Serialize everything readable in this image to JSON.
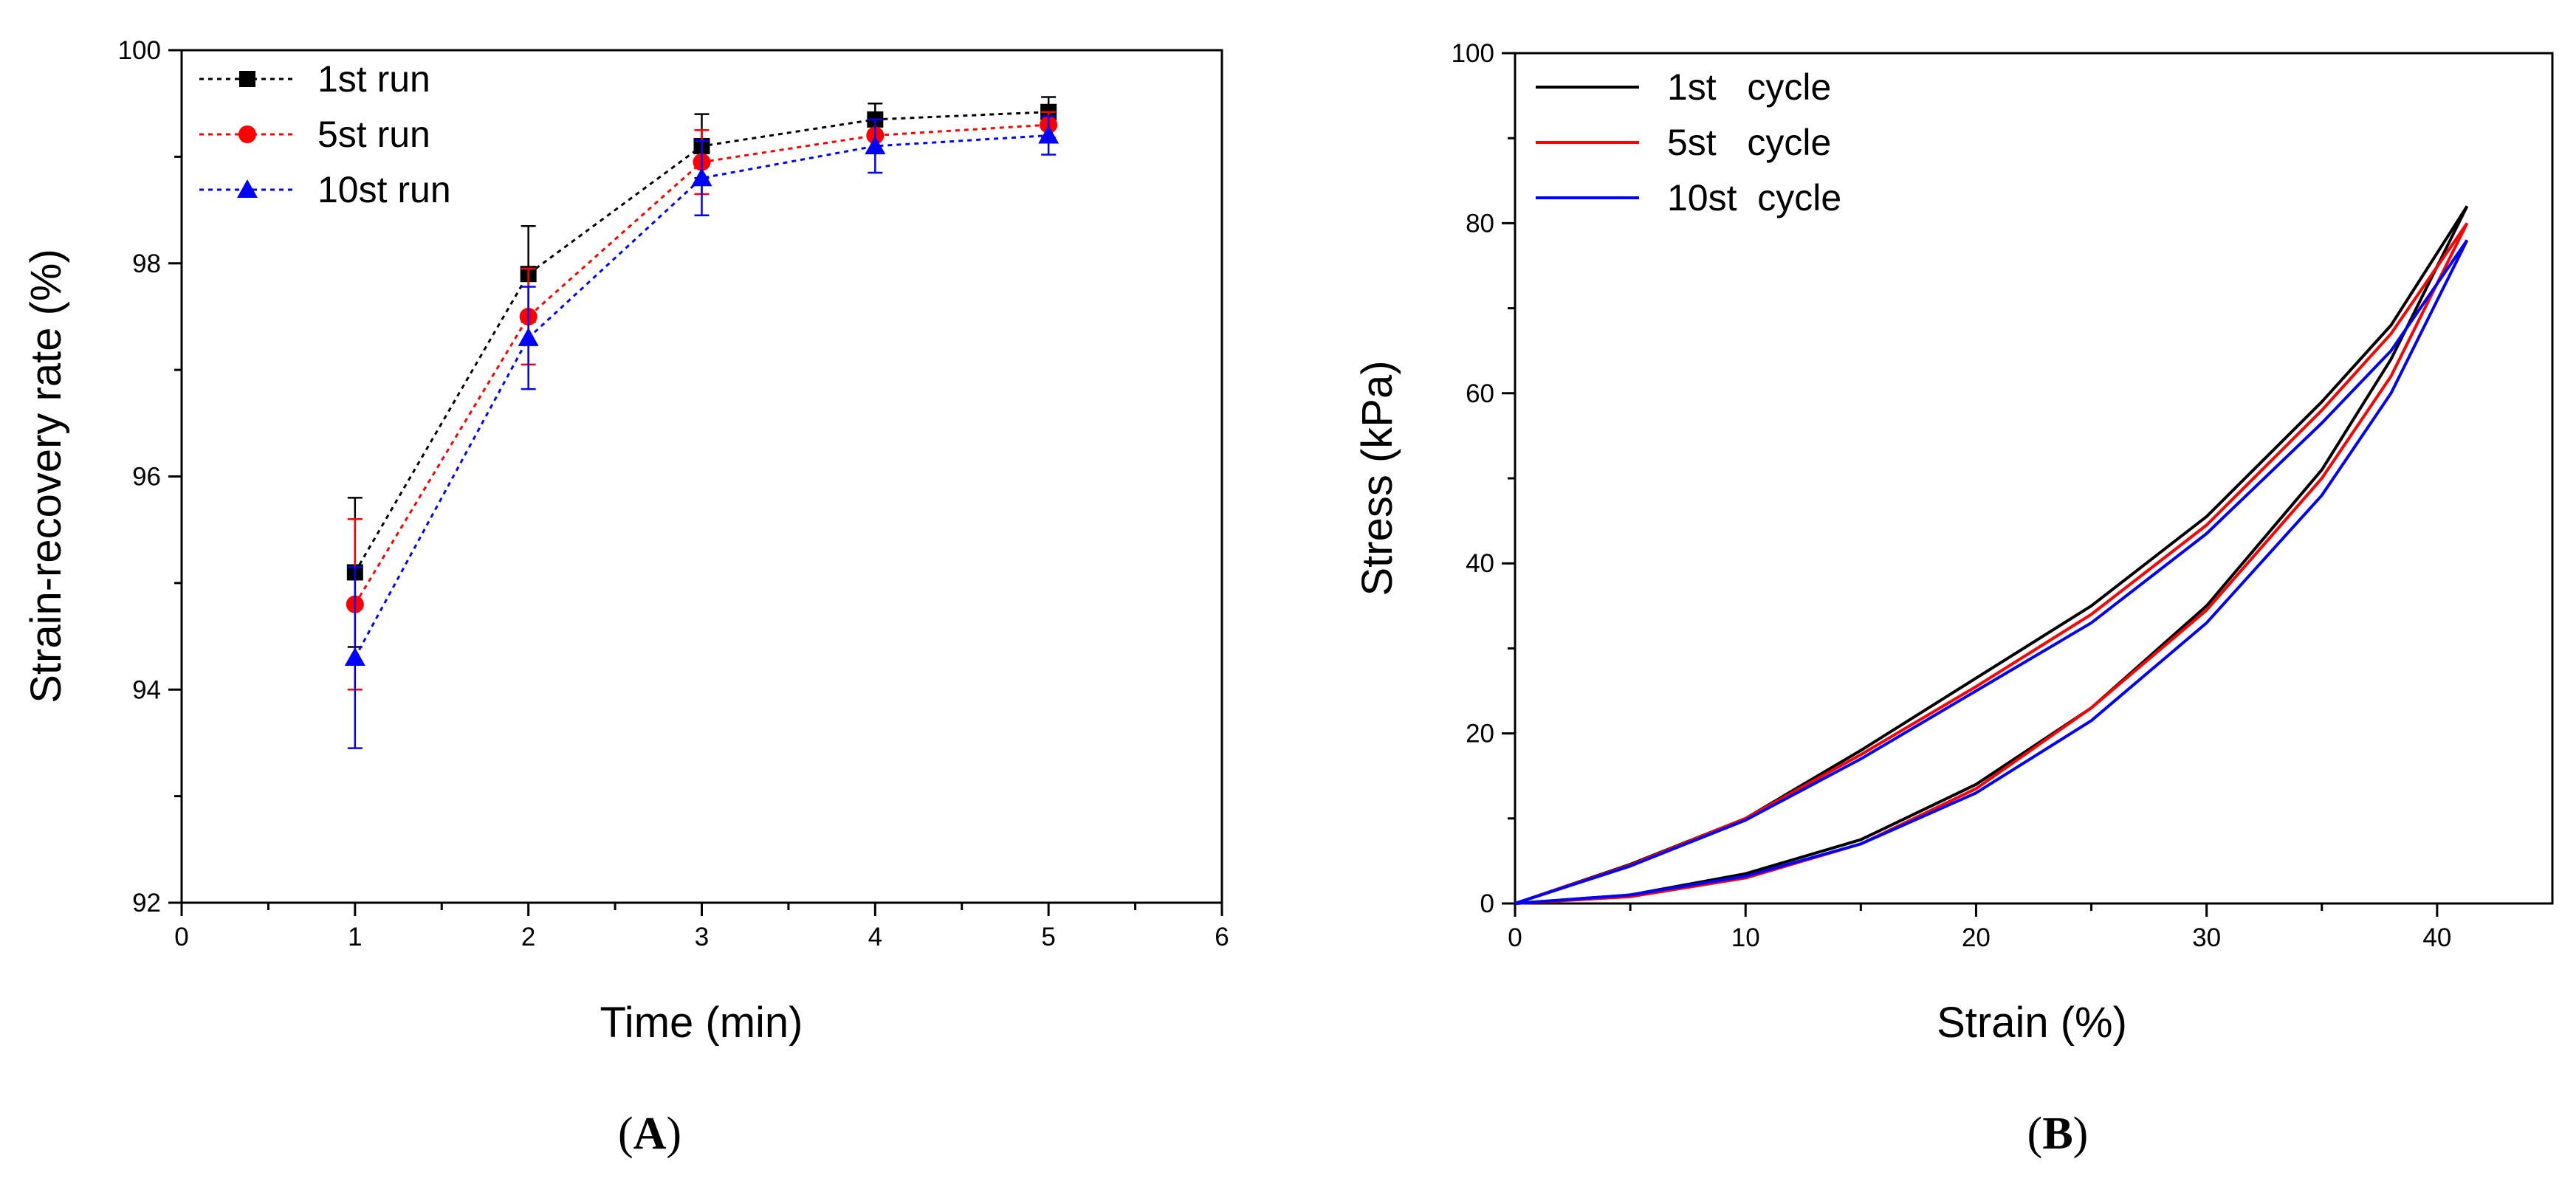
{
  "chart_data": [
    {
      "type": "line",
      "panel_label": {
        "open": "(",
        "letter": "A",
        "close": ")"
      },
      "xlabel": "Time (min)",
      "ylabel": "Strain-recovery rate (%)",
      "xlim": [
        0,
        6
      ],
      "ylim": [
        92,
        100
      ],
      "xticks": [
        "0",
        "1",
        "2",
        "3",
        "4",
        "5",
        "6"
      ],
      "yticks": [
        "92",
        "94",
        "96",
        "98",
        "100"
      ],
      "grid": false,
      "legend_position": "top-left",
      "series": [
        {
          "name": "1st run",
          "color": "#000000",
          "marker": "square",
          "x": [
            1,
            2,
            3,
            4,
            5
          ],
          "y": [
            95.1,
            97.9,
            99.1,
            99.35,
            99.42
          ],
          "err": [
            0.7,
            0.45,
            0.3,
            0.15,
            0.14
          ]
        },
        {
          "name": "5st run",
          "color": "#ff0000",
          "marker": "circle",
          "x": [
            1,
            2,
            3,
            4,
            5
          ],
          "y": [
            94.8,
            97.5,
            98.95,
            99.2,
            99.3
          ],
          "err": [
            0.8,
            0.45,
            0.3,
            0.15,
            0.12
          ]
        },
        {
          "name": "10st run",
          "color": "#0000ff",
          "marker": "triangle",
          "x": [
            1,
            2,
            3,
            4,
            5
          ],
          "y": [
            94.3,
            97.3,
            98.8,
            99.1,
            99.2
          ],
          "err": [
            0.85,
            0.48,
            0.35,
            0.25,
            0.18
          ]
        }
      ]
    },
    {
      "type": "line",
      "panel_label": {
        "open": "(",
        "letter": "B",
        "close": ")"
      },
      "xlabel": "Strain (%)",
      "ylabel": "Stress (kPa)",
      "xlim": [
        0,
        45
      ],
      "ylim": [
        0,
        100
      ],
      "xticks": [
        "0",
        "10",
        "20",
        "30",
        "40"
      ],
      "yticks": [
        "0",
        "20",
        "40",
        "60",
        "80",
        "100"
      ],
      "grid": false,
      "legend_position": "top-left",
      "series": [
        {
          "name": "1st   cycle",
          "color": "#000000",
          "loading": {
            "x": [
              0,
              5,
              10,
              15,
              20,
              25,
              30,
              35,
              38,
              41.3
            ],
            "y": [
              0,
              4.6,
              10,
              18,
              26.5,
              35,
              45.5,
              59,
              68,
              82
            ]
          },
          "unloading": {
            "x": [
              41.3,
              38,
              35,
              30,
              25,
              20,
              15,
              10,
              5,
              0
            ],
            "y": [
              82,
              64,
              51,
              35,
              23,
              14,
              7.5,
              3.5,
              1,
              0
            ]
          }
        },
        {
          "name": "5st   cycle",
          "color": "#ff0000",
          "loading": {
            "x": [
              0,
              5,
              10,
              15,
              20,
              25,
              30,
              35,
              38,
              41.3
            ],
            "y": [
              0,
              4.5,
              10,
              17.5,
              25.5,
              34,
              44.5,
              58,
              67,
              80
            ]
          },
          "unloading": {
            "x": [
              41.3,
              38,
              35,
              30,
              25,
              20,
              15,
              10,
              5,
              0
            ],
            "y": [
              80,
              62,
              50,
              34.5,
              23,
              13.5,
              7,
              3,
              0.8,
              0
            ]
          }
        },
        {
          "name": "10st  cycle",
          "color": "#0000ff",
          "loading": {
            "x": [
              0,
              5,
              10,
              15,
              20,
              25,
              30,
              35,
              38,
              41.3
            ],
            "y": [
              0,
              4.4,
              9.8,
              17,
              25,
              33,
              43.5,
              56.5,
              65,
              78
            ]
          },
          "unloading": {
            "x": [
              41.3,
              38,
              35,
              30,
              25,
              20,
              15,
              10,
              5,
              0
            ],
            "y": [
              78,
              60,
              48,
              33,
              21.5,
              13,
              7,
              3.2,
              1,
              0
            ]
          }
        }
      ]
    }
  ]
}
